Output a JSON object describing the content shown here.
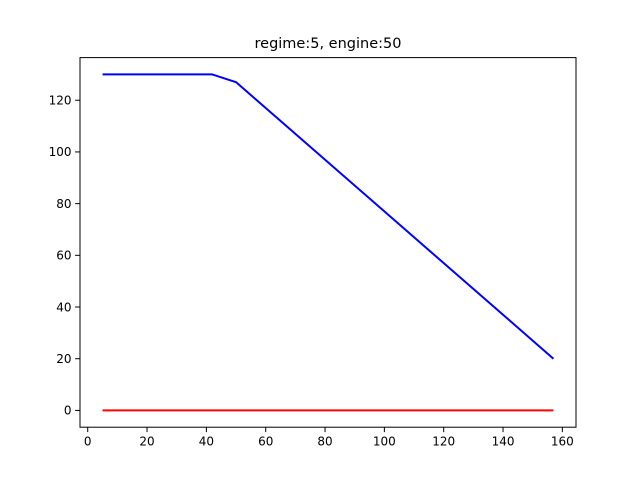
{
  "chart_data": {
    "type": "line",
    "title": "regime:5, engine:50",
    "xlabel": "",
    "ylabel": "",
    "xlim": [
      -2.6,
      164.6
    ],
    "ylim": [
      -6.5,
      136.5
    ],
    "xticks": [
      0,
      20,
      40,
      60,
      80,
      100,
      120,
      140,
      160
    ],
    "yticks": [
      0,
      20,
      40,
      60,
      80,
      100,
      120
    ],
    "grid": false,
    "legend": "none",
    "series": [
      {
        "color": "#0000ff",
        "x": [
          5,
          42,
          50,
          157
        ],
        "y": [
          130,
          130,
          127,
          20
        ]
      },
      {
        "color": "#ff0000",
        "x": [
          5,
          157
        ],
        "y": [
          0,
          0
        ]
      }
    ]
  }
}
